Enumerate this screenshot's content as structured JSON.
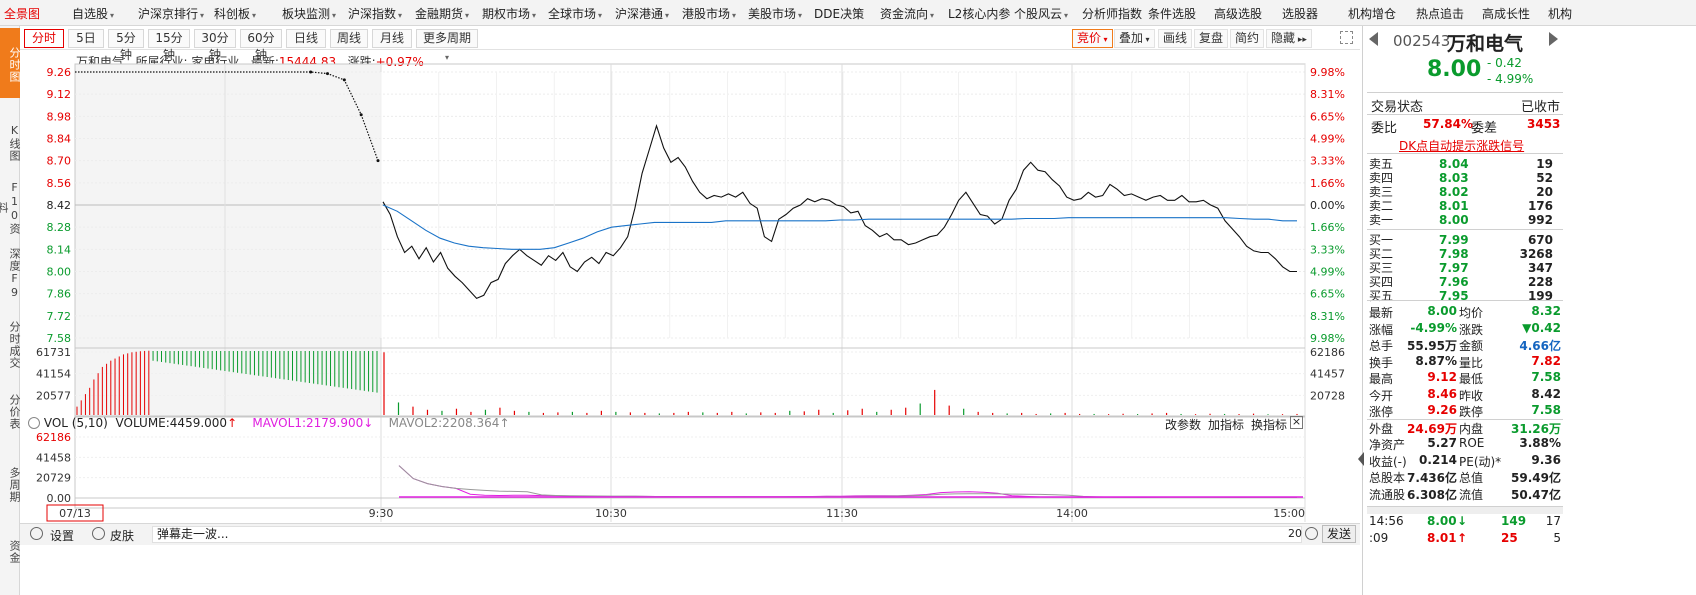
{
  "top_menu": {
    "items": [
      {
        "label": "全景图",
        "arrow": false,
        "active": true
      },
      {
        "label": "自选股",
        "arrow": true
      },
      {
        "label": "沪深京排行",
        "arrow": true
      },
      {
        "label": "科创板",
        "arrow": true
      },
      {
        "label": "板块监测",
        "arrow": true
      },
      {
        "label": "沪深指数",
        "arrow": true
      },
      {
        "label": "金融期货",
        "arrow": true
      },
      {
        "label": "期权市场",
        "arrow": true
      },
      {
        "label": "全球市场",
        "arrow": true
      },
      {
        "label": "沪深港通",
        "arrow": true
      },
      {
        "label": "港股市场",
        "arrow": true
      },
      {
        "label": "美股市场",
        "arrow": true
      },
      {
        "label": "DDE决策",
        "arrow": false
      },
      {
        "label": "资金流向",
        "arrow": true
      },
      {
        "label": "L2核心内参",
        "arrow": false
      },
      {
        "label": "个股风云",
        "arrow": true
      },
      {
        "label": "分析师指数",
        "arrow": false
      },
      {
        "label": "条件选股",
        "arrow": false
      },
      {
        "label": "高级选股",
        "arrow": false
      },
      {
        "label": "选股器",
        "arrow": false
      },
      {
        "label": "机构增仓",
        "arrow": false
      },
      {
        "label": "热点追击",
        "arrow": false
      },
      {
        "label": "高成长性",
        "arrow": false
      },
      {
        "label": "机构",
        "arrow": false
      }
    ]
  },
  "left_bar": {
    "tabs": [
      "分时图",
      "K线图",
      "F10资料",
      "深度F9",
      "分时成交",
      "分价表",
      "多周期",
      "资金"
    ]
  },
  "toolbar": {
    "periods": [
      "分时",
      "5日",
      "5分钟",
      "15分钟",
      "30分钟",
      "60分钟",
      "日线",
      "周线",
      "月线",
      "更多周期"
    ],
    "right_buttons": [
      "竞价",
      "叠加",
      "画线",
      "复盘",
      "简约",
      "隐藏"
    ]
  },
  "info": {
    "stock_name": "万和电气",
    "industry_label": "所属行业:",
    "industry": "家电行业",
    "latest_label": "最新:",
    "latest": "15444.83",
    "change_label": "涨跌:",
    "change": "+0.97%"
  },
  "chart_data": [
    {
      "type": "line",
      "title": "分时",
      "x_ticks": [
        "9:30",
        "10:30",
        "11:30",
        "14:00",
        "15:00"
      ],
      "date_label": "07/13",
      "y_ticks": [
        "9.26",
        "9.12",
        "8.98",
        "8.84",
        "8.70",
        "8.56",
        "8.42",
        "8.28",
        "8.14",
        "8.00",
        "7.86",
        "7.72",
        "7.58"
      ],
      "y_pct_ticks": [
        "9.98%",
        "8.31%",
        "6.65%",
        "4.99%",
        "3.33%",
        "1.66%",
        "0.00%",
        "1.66%",
        "3.33%",
        "4.99%",
        "6.65%",
        "8.31%",
        "9.98%"
      ],
      "ylim": [
        7.58,
        9.26
      ],
      "prev_close": 8.42,
      "auction_series": {
        "name": "集合竞价",
        "values": [
          9.26,
          9.26,
          9.26,
          9.26,
          9.26,
          9.26,
          9.26,
          9.26,
          9.26,
          9.26,
          9.26,
          9.26,
          9.26,
          9.26,
          9.26,
          9.25,
          9.21,
          8.99,
          8.7
        ]
      },
      "series": [
        {
          "name": "价格",
          "color": "#111111",
          "values": [
            8.44,
            8.36,
            8.22,
            8.12,
            8.16,
            8.08,
            8.15,
            8.06,
            8.12,
            8.02,
            7.97,
            7.93,
            7.88,
            7.83,
            7.85,
            7.93,
            7.95,
            8.05,
            8.1,
            8.14,
            8.1,
            8.07,
            8.04,
            8.1,
            8.07,
            8.12,
            8.03,
            8.0,
            8.06,
            8.09,
            8.05,
            8.12,
            8.1,
            8.15,
            8.22,
            8.4,
            8.62,
            8.77,
            8.92,
            8.78,
            8.69,
            8.72,
            8.66,
            8.57,
            8.5,
            8.46,
            8.48,
            8.47,
            8.49,
            8.47,
            8.5,
            8.43,
            8.4,
            8.22,
            8.19,
            8.33,
            8.36,
            8.4,
            8.42,
            8.46,
            8.44,
            8.46,
            8.45,
            8.42,
            8.41,
            8.37,
            8.38,
            8.29,
            8.26,
            8.22,
            8.24,
            8.2,
            8.2,
            8.17,
            8.18,
            8.2,
            8.22,
            8.23,
            8.28,
            8.36,
            8.45,
            8.5,
            8.43,
            8.36,
            8.35,
            8.3,
            8.33,
            8.45,
            8.52,
            8.64,
            8.69,
            8.64,
            8.63,
            8.58,
            8.54,
            8.47,
            8.45,
            8.46,
            8.5,
            8.47,
            8.48,
            8.55,
            8.52,
            8.48,
            8.49,
            8.47,
            8.45,
            8.47,
            8.48,
            8.45,
            8.45,
            8.48,
            8.44,
            8.44,
            8.45,
            8.42,
            8.4,
            8.32,
            8.27,
            8.22,
            8.16,
            8.13,
            8.12,
            8.12,
            8.08,
            8.03,
            8.0,
            8.0
          ]
        },
        {
          "name": "均价",
          "color": "#1a73c8",
          "values": [
            8.42,
            8.38,
            8.32,
            8.26,
            8.21,
            8.18,
            8.16,
            8.15,
            8.145,
            8.14,
            8.14,
            8.14,
            8.15,
            8.18,
            8.21,
            8.25,
            8.28,
            8.29,
            8.3,
            8.31,
            8.31,
            8.31,
            8.31,
            8.31,
            8.32,
            8.32,
            8.32,
            8.32,
            8.32,
            8.32,
            8.32,
            8.32,
            8.325,
            8.325,
            8.33,
            8.33,
            8.33,
            8.33,
            8.33,
            8.33,
            8.33,
            8.33,
            8.33,
            8.33,
            8.33,
            8.335,
            8.335,
            8.335,
            8.34,
            8.34,
            8.34,
            8.34,
            8.34,
            8.34,
            8.34,
            8.34,
            8.34,
            8.34,
            8.34,
            8.34,
            8.335,
            8.33,
            8.33,
            8.32,
            8.32
          ]
        }
      ]
    },
    {
      "type": "bar",
      "title": "成交量",
      "y_ticks_left": [
        "61731",
        "41154",
        "20577"
      ],
      "y_ticks_right": [
        "62186",
        "41457",
        "20728"
      ],
      "auction_values": [
        8000,
        14000,
        20000,
        26000,
        34000,
        40000,
        46000,
        49000,
        52000,
        54000,
        56000,
        58000,
        59000,
        60000,
        60500,
        61000,
        61300,
        61500,
        61700,
        61731,
        61731,
        61731,
        61731,
        61731,
        61731,
        61731,
        61731,
        61731,
        61731,
        61731,
        61731,
        61731,
        61731,
        61731,
        61731,
        61731,
        61731,
        61731,
        61731,
        61731,
        61731,
        61731,
        61731,
        61731,
        61731,
        61731,
        61731,
        61731,
        61731,
        61731,
        61731,
        61731,
        61731,
        61731,
        61731,
        61731,
        61731,
        61731,
        61731,
        61731,
        61731,
        61731,
        61731,
        61731,
        61731,
        61731,
        61731,
        61731,
        61731,
        61731,
        61731,
        61731
      ],
      "auction_values_buy_sell": "red first half, green second half",
      "values": [
        60000,
        12000,
        8000,
        5000,
        4000,
        6000,
        3000,
        5000,
        7000,
        4000,
        3000,
        2000,
        2500,
        3000,
        2000,
        4000,
        3000,
        2500,
        2000,
        1500,
        2000,
        3000,
        2500,
        2000,
        3000,
        1500,
        2500,
        2000,
        4000,
        3500,
        5000,
        2000,
        4500,
        6000,
        3000,
        5000,
        7000,
        11000,
        24000,
        9000,
        6000,
        3000,
        2000,
        1500,
        2000,
        1000,
        1500,
        2000,
        1000,
        1000,
        800,
        1200,
        900,
        1500,
        2000,
        1000,
        800,
        1200,
        1000,
        900,
        1300,
        700,
        800,
        1000
      ]
    },
    {
      "type": "line",
      "title": "VOL (5,10)",
      "y_ticks_left": [
        "62186",
        "41458",
        "20729",
        "0.00"
      ],
      "series": [
        {
          "name": "MAVOL1",
          "color": "#e020e0"
        },
        {
          "name": "MAVOL2",
          "color": "#999999"
        }
      ]
    }
  ],
  "vol_header": {
    "label": "VOL (5,10)",
    "volume": "VOLUME:4459.000",
    "mavol1": "MAVOL1:2179.900",
    "mavol2": "MAVOL2:2208.364",
    "btn_params": "改参数",
    "btn_add": "加指标",
    "btn_switch": "换指标"
  },
  "bottom_bar": {
    "settings": "设置",
    "skin": "皮肤",
    "danmu": "弹幕走一波...",
    "count": "20",
    "send": "发送"
  },
  "quote": {
    "code": "002543",
    "name": "万和电气",
    "price": "8.00",
    "change": "- 0.42",
    "change_pct": "- 4.99%",
    "status_label": "交易状态",
    "status": "已收市",
    "weibi_label": "委比",
    "weibi": "57.84%",
    "weicha_label": "委差",
    "weicha": "3453",
    "dk_link": "DK点自动提示涨跌信号",
    "asks": [
      {
        "label": "卖五",
        "price": "8.04",
        "vol": "19"
      },
      {
        "label": "卖四",
        "price": "8.03",
        "vol": "52"
      },
      {
        "label": "卖三",
        "price": "8.02",
        "vol": "20"
      },
      {
        "label": "卖二",
        "price": "8.01",
        "vol": "176"
      },
      {
        "label": "卖一",
        "price": "8.00",
        "vol": "992"
      }
    ],
    "bids": [
      {
        "label": "买一",
        "price": "7.99",
        "vol": "670"
      },
      {
        "label": "买二",
        "price": "7.98",
        "vol": "3268"
      },
      {
        "label": "买三",
        "price": "7.97",
        "vol": "347"
      },
      {
        "label": "买四",
        "price": "7.96",
        "vol": "228"
      },
      {
        "label": "买五",
        "price": "7.95",
        "vol": "199"
      }
    ],
    "stats": [
      [
        {
          "label": "最新",
          "value": "8.00",
          "c": "green"
        },
        {
          "label": "均价",
          "value": "8.32",
          "c": "green"
        }
      ],
      [
        {
          "label": "涨幅",
          "value": "-4.99%",
          "c": "green"
        },
        {
          "label": "涨跌",
          "value": "▼0.42",
          "c": "green"
        }
      ],
      [
        {
          "label": "总手",
          "value": "55.95万",
          "c": "dark"
        },
        {
          "label": "金额",
          "value": "4.66亿",
          "c": "blue"
        }
      ],
      [
        {
          "label": "换手",
          "value": "8.87%",
          "c": "dark"
        },
        {
          "label": "量比",
          "value": "7.82",
          "c": "red"
        }
      ],
      [
        {
          "label": "最高",
          "value": "9.12",
          "c": "red"
        },
        {
          "label": "最低",
          "value": "7.58",
          "c": "green"
        }
      ],
      [
        {
          "label": "今开",
          "value": "8.46",
          "c": "red"
        },
        {
          "label": "昨收",
          "value": "8.42",
          "c": "dark"
        }
      ],
      [
        {
          "label": "涨停",
          "value": "9.26",
          "c": "red"
        },
        {
          "label": "跌停",
          "value": "7.58",
          "c": "green"
        }
      ],
      [
        {
          "label": "外盘",
          "value": "24.69万",
          "c": "red"
        },
        {
          "label": "内盘",
          "value": "31.26万",
          "c": "green"
        }
      ],
      [
        {
          "label": "净资产",
          "value": "5.27",
          "c": "dark"
        },
        {
          "label": "ROE",
          "value": "3.88%",
          "c": "dark"
        }
      ],
      [
        {
          "label": "收益(-)",
          "value": "0.214",
          "c": "dark"
        },
        {
          "label": "PE(动)*",
          "value": "9.36",
          "c": "dark"
        }
      ],
      [
        {
          "label": "总股本",
          "value": "7.436亿",
          "c": "dark"
        },
        {
          "label": "总值",
          "value": "59.49亿",
          "c": "dark"
        }
      ],
      [
        {
          "label": "流通股",
          "value": "6.308亿",
          "c": "dark"
        },
        {
          "label": "流值",
          "value": "50.47亿",
          "c": "dark"
        }
      ]
    ],
    "ticks": [
      {
        "time": "14:56",
        "price": "8.00",
        "dir": "down",
        "vol": "149",
        "n": "17"
      },
      {
        "time": ":09",
        "price": "8.01",
        "dir": "up",
        "vol": "25",
        "n": "5"
      }
    ]
  },
  "colors": {
    "accent": "#f07b1b",
    "up": "#e60000",
    "down": "#0a9b2d",
    "avg": "#1a73c8"
  }
}
